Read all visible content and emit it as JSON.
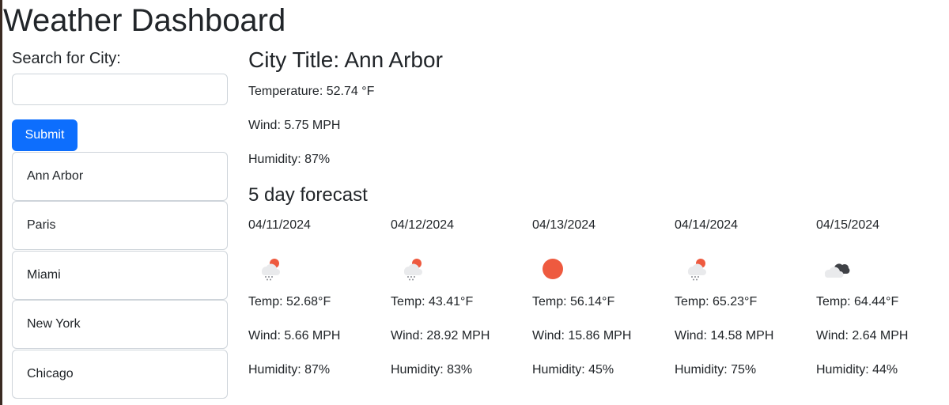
{
  "header": {
    "title": "Weather Dashboard"
  },
  "search": {
    "label": "Search for City:",
    "value": "",
    "placeholder": "",
    "submit_label": "Submit"
  },
  "history": {
    "cities": [
      "Ann Arbor",
      "Paris",
      "Miami",
      "New York",
      "Chicago"
    ]
  },
  "current": {
    "city_title": "City Title: Ann Arbor",
    "temperature": "Temperature: 52.74 °F",
    "wind": "Wind: 5.75 MPH",
    "humidity": "Humidity: 87%"
  },
  "forecast": {
    "heading": "5 day forecast",
    "days": [
      {
        "date": "04/11/2024",
        "icon": "sun-rain-icon",
        "temp": "Temp: 52.68°F",
        "wind": "Wind: 5.66 MPH",
        "humidity": "Humidity: 87%"
      },
      {
        "date": "04/12/2024",
        "icon": "sun-rain-icon",
        "temp": "Temp: 43.41°F",
        "wind": "Wind: 28.92 MPH",
        "humidity": "Humidity: 83%"
      },
      {
        "date": "04/13/2024",
        "icon": "sun-icon",
        "temp": "Temp: 56.14°F",
        "wind": "Wind: 15.86 MPH",
        "humidity": "Humidity: 45%"
      },
      {
        "date": "04/14/2024",
        "icon": "sun-rain-icon",
        "temp": "Temp: 65.23°F",
        "wind": "Wind: 14.58 MPH",
        "humidity": "Humidity: 75%"
      },
      {
        "date": "04/15/2024",
        "icon": "cloudy-icon",
        "temp": "Temp: 64.44°F",
        "wind": "Wind: 2.64 MPH",
        "humidity": "Humidity: 44%"
      }
    ]
  },
  "colors": {
    "primary": "#0d6efd",
    "sun": "#ee5a3f",
    "text": "#212529",
    "border": "#ced4da"
  }
}
